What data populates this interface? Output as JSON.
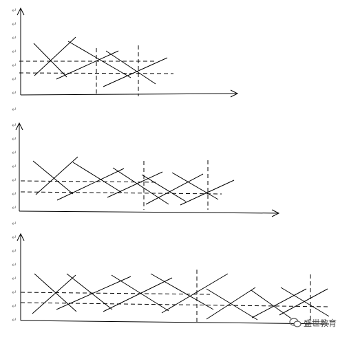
{
  "document": {
    "paragraph_mark": "↵",
    "watermark_text": "盛世教育",
    "watermark_icon": "wechat-icon"
  },
  "diagrams": [
    {
      "name": "diagram-1",
      "label_count": 7
    },
    {
      "name": "diagram-2",
      "label_count": 7
    },
    {
      "name": "diagram-3",
      "label_count": 7
    }
  ]
}
